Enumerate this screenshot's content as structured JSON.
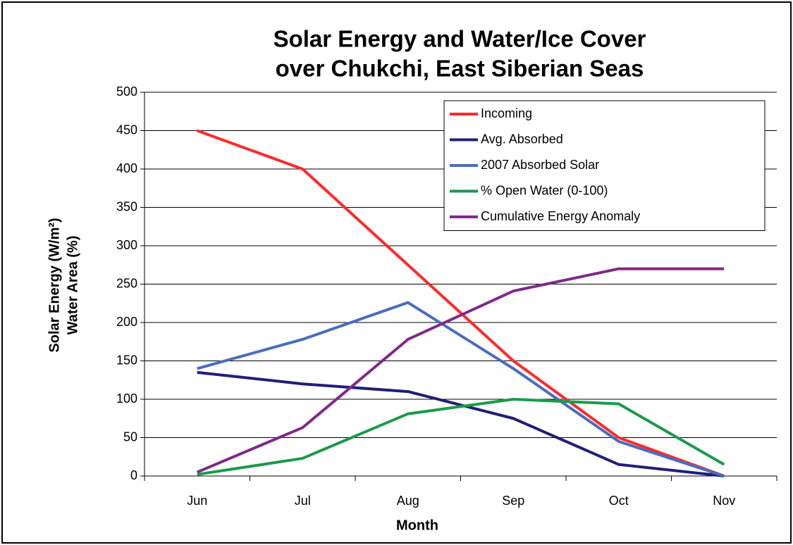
{
  "chart_data": {
    "type": "line",
    "title": [
      "Solar Energy and Water/Ice Cover",
      "over Chukchi, East Siberian Seas"
    ],
    "x_label": "Month",
    "y_label": [
      "Solar Energy (W/m²)",
      "Water Area (%)"
    ],
    "categories": [
      "Jun",
      "Jul",
      "Aug",
      "Sep",
      "Oct",
      "Nov"
    ],
    "series": [
      {
        "name": "Incoming",
        "color": "#ff2a2a",
        "values": [
          450,
          400,
          275,
          150,
          50,
          0
        ]
      },
      {
        "name": "Avg. Absorbed",
        "color": "#1f1f78",
        "values": [
          135,
          120,
          110,
          75,
          15,
          0
        ]
      },
      {
        "name": "2007 Absorbed Solar",
        "color": "#4a6cc0",
        "values": [
          140,
          178,
          226,
          140,
          45,
          0
        ]
      },
      {
        "name": "% Open Water (0-100)",
        "color": "#1b9a4a",
        "values": [
          2,
          23,
          81,
          100,
          94,
          15
        ]
      },
      {
        "name": "Cumulative Energy Anomaly",
        "color": "#7f2a88",
        "values": [
          5,
          63,
          178,
          241,
          270,
          270
        ]
      }
    ],
    "ylim": [
      0,
      500
    ],
    "yticks": [
      0,
      50,
      100,
      150,
      200,
      250,
      300,
      350,
      400,
      450,
      500
    ],
    "grid": true,
    "legend": "upper right"
  }
}
